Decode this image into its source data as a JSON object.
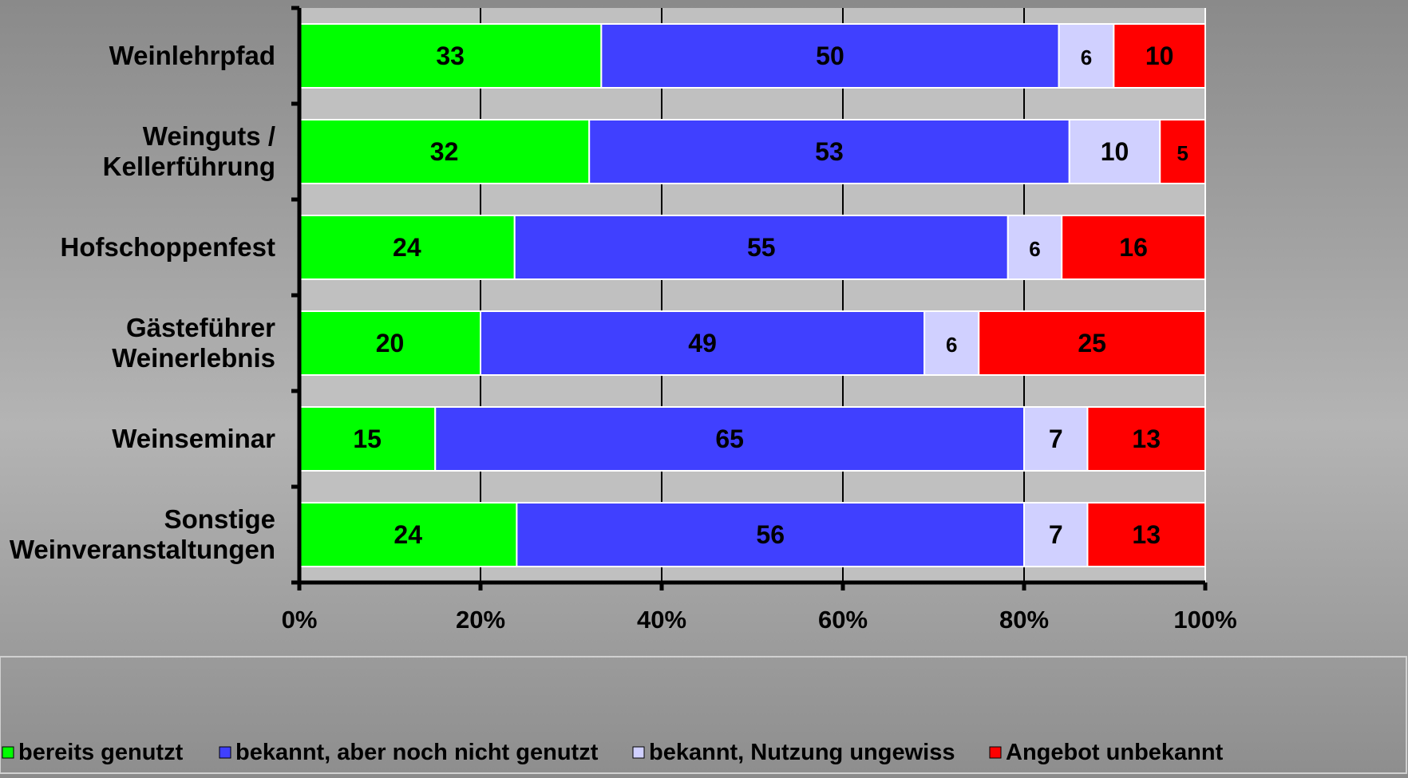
{
  "chart_data": {
    "type": "bar",
    "orientation": "horizontal",
    "stacked": true,
    "percent_stacked": true,
    "categories": [
      [
        "Weinlehrpfad"
      ],
      [
        "Weinguts /",
        "Kellerführung"
      ],
      [
        "Hofschoppenfest"
      ],
      [
        "Gästeführer",
        "Weinerlebnis"
      ],
      [
        "Weinseminar"
      ],
      [
        "Sonstige",
        "Weinveranstaltungen"
      ]
    ],
    "series": [
      {
        "name": "bereits genutzt",
        "color": "#00ff00",
        "values": [
          33,
          32,
          24,
          20,
          15,
          24
        ]
      },
      {
        "name": "bekannt, aber noch nicht genutzt",
        "color": "#4040ff",
        "values": [
          50,
          53,
          55,
          49,
          65,
          56
        ]
      },
      {
        "name": "bekannt, Nutzung ungewiss",
        "color": "#d0d0ff",
        "values": [
          6,
          10,
          6,
          6,
          7,
          7
        ]
      },
      {
        "name": "Angebot unbekannt",
        "color": "#ff0000",
        "values": [
          10,
          5,
          16,
          25,
          13,
          13
        ]
      }
    ],
    "xticks": [
      "0%",
      "20%",
      "40%",
      "60%",
      "80%",
      "100%"
    ],
    "xlim": [
      0,
      100
    ],
    "grid": true,
    "legend_position": "bottom",
    "plot_background": "#c0c0c0",
    "title": "",
    "xlabel": "",
    "ylabel": ""
  }
}
